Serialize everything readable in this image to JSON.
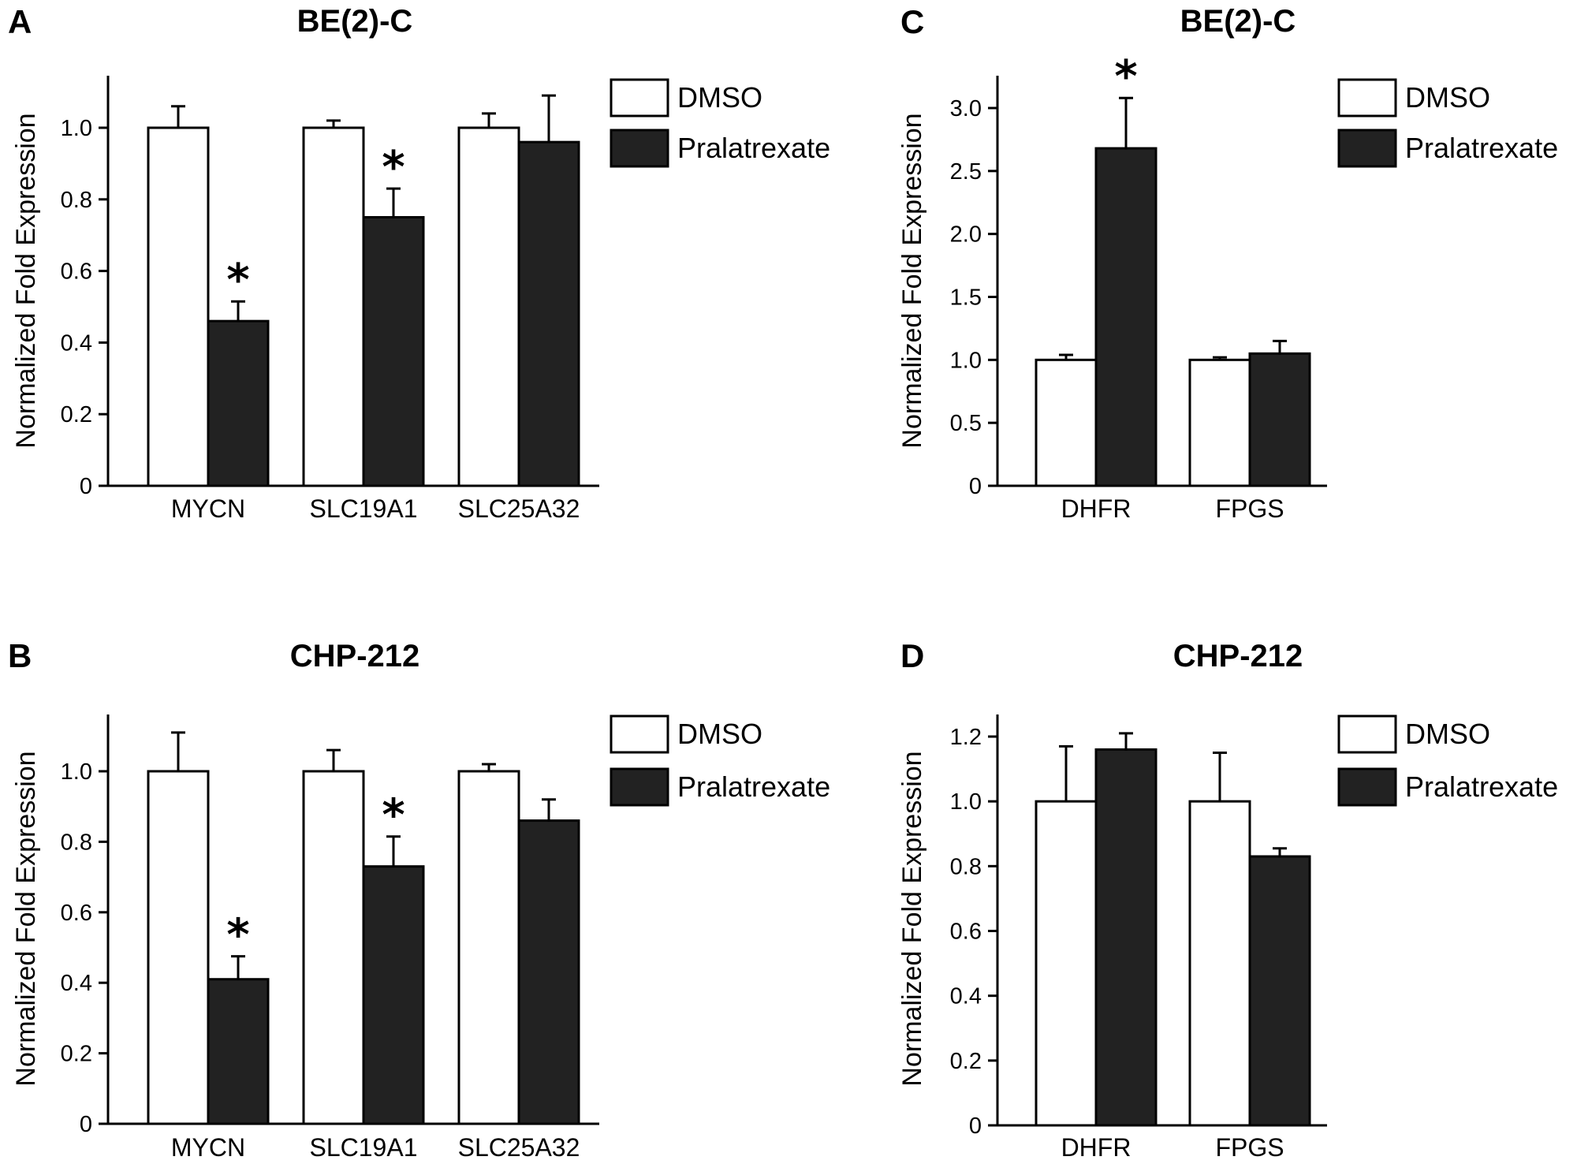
{
  "chart_data": [
    {
      "type": "bar",
      "panel": "A",
      "title": "BE(2)-C",
      "ylabel": "Normalized Fold Expression",
      "xlabel": "",
      "categories": [
        "MYCN",
        "SLC19A1",
        "SLC25A32"
      ],
      "ylim": [
        0,
        1.1
      ],
      "yticks": [
        0,
        0.2,
        0.4,
        0.6,
        0.8,
        1.0
      ],
      "ytick_labels": [
        "0",
        "0.2",
        "0.4",
        "0.6",
        "0.8",
        "1.0"
      ],
      "series": [
        {
          "name": "DMSO",
          "color": "#ffffff",
          "values": [
            1.0,
            1.0,
            1.0
          ],
          "errors": [
            0.06,
            0.02,
            0.04
          ]
        },
        {
          "name": "Pralatrexate",
          "color": "#222222",
          "values": [
            0.46,
            0.75,
            0.96
          ],
          "errors": [
            0.055,
            0.08,
            0.13
          ]
        }
      ],
      "significance": [
        {
          "category": "MYCN",
          "series": "Pralatrexate",
          "label": "*"
        },
        {
          "category": "SLC19A1",
          "series": "Pralatrexate",
          "label": "*"
        }
      ],
      "legend": "top-right",
      "grid": false
    },
    {
      "type": "bar",
      "panel": "B",
      "title": "CHP-212",
      "ylabel": "Normalized Fold Expression",
      "xlabel": "",
      "categories": [
        "MYCN",
        "SLC19A1",
        "SLC25A32"
      ],
      "ylim": [
        0,
        1.1
      ],
      "yticks": [
        0,
        0.2,
        0.4,
        0.6,
        0.8,
        1.0
      ],
      "ytick_labels": [
        "0",
        "0.2",
        "0.4",
        "0.6",
        "0.8",
        "1.0"
      ],
      "series": [
        {
          "name": "DMSO",
          "color": "#ffffff",
          "values": [
            1.0,
            1.0,
            1.0
          ],
          "errors": [
            0.11,
            0.06,
            0.02
          ]
        },
        {
          "name": "Pralatrexate",
          "color": "#222222",
          "values": [
            0.41,
            0.73,
            0.86
          ],
          "errors": [
            0.065,
            0.085,
            0.06
          ]
        }
      ],
      "significance": [
        {
          "category": "MYCN",
          "series": "Pralatrexate",
          "label": "*"
        },
        {
          "category": "SLC19A1",
          "series": "Pralatrexate",
          "label": "*"
        }
      ],
      "legend": "top-right",
      "grid": false
    },
    {
      "type": "bar",
      "panel": "C",
      "title": "BE(2)-C",
      "ylabel": "Normalized Fold Expression",
      "xlabel": "",
      "categories": [
        "DHFR",
        "FPGS"
      ],
      "ylim": [
        0,
        3.0
      ],
      "yticks": [
        0,
        0.5,
        1.0,
        1.5,
        2.0,
        2.5,
        3.0
      ],
      "ytick_labels": [
        "0",
        "0.5",
        "1.0",
        "1.5",
        "2.0",
        "2.5",
        "3.0"
      ],
      "series": [
        {
          "name": "DMSO",
          "color": "#ffffff",
          "values": [
            1.0,
            1.0
          ],
          "errors": [
            0.04,
            0.02
          ]
        },
        {
          "name": "Pralatrexate",
          "color": "#222222",
          "values": [
            2.68,
            1.05
          ],
          "errors": [
            0.4,
            0.1
          ]
        }
      ],
      "significance": [
        {
          "category": "DHFR",
          "series": "Pralatrexate",
          "label": "*"
        }
      ],
      "legend": "top-right",
      "grid": false
    },
    {
      "type": "bar",
      "panel": "D",
      "title": "CHP-212",
      "ylabel": "Normalized Fold Expression",
      "xlabel": "",
      "categories": [
        "DHFR",
        "FPGS"
      ],
      "ylim": [
        0,
        1.2
      ],
      "yticks": [
        0,
        0.2,
        0.4,
        0.6,
        0.8,
        1.0,
        1.2
      ],
      "ytick_labels": [
        "0",
        "0.2",
        "0.4",
        "0.6",
        "0.8",
        "1.0",
        "1.2"
      ],
      "series": [
        {
          "name": "DMSO",
          "color": "#ffffff",
          "values": [
            1.0,
            1.0
          ],
          "errors": [
            0.17,
            0.15
          ]
        },
        {
          "name": "Pralatrexate",
          "color": "#222222",
          "values": [
            1.16,
            0.83
          ],
          "errors": [
            0.05,
            0.025
          ]
        }
      ],
      "significance": [],
      "legend": "top-right",
      "grid": false
    }
  ]
}
